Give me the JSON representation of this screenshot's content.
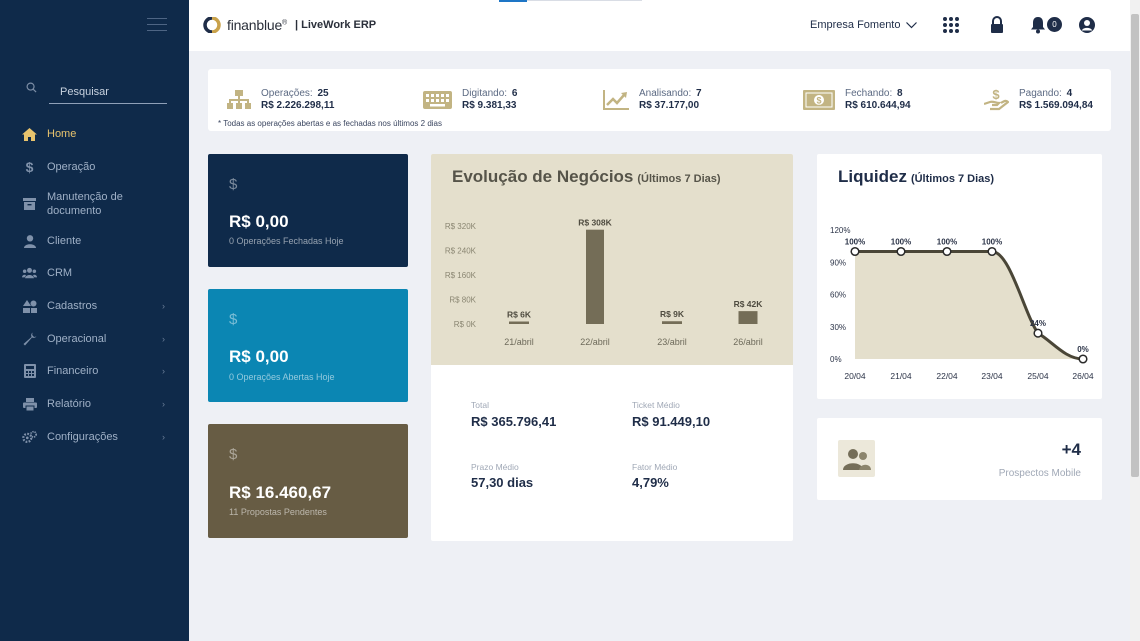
{
  "sidebar": {
    "search_placeholder": "Pesquisar",
    "items": [
      {
        "label": "Home",
        "icon": "home-icon",
        "active": true,
        "submenu": false
      },
      {
        "label": "Operação",
        "icon": "dollar-icon",
        "submenu": false
      },
      {
        "label": "Manutenção de documento",
        "icon": "archive-icon",
        "submenu": false
      },
      {
        "label": "Cliente",
        "icon": "user-icon",
        "submenu": false
      },
      {
        "label": "CRM",
        "icon": "users-icon",
        "submenu": false
      },
      {
        "label": "Cadastros",
        "icon": "shapes-icon",
        "submenu": true
      },
      {
        "label": "Operacional",
        "icon": "wrench-icon",
        "submenu": true
      },
      {
        "label": "Financeiro",
        "icon": "calculator-icon",
        "submenu": true
      },
      {
        "label": "Relatório",
        "icon": "printer-icon",
        "submenu": true
      },
      {
        "label": "Configurações",
        "icon": "gears-icon",
        "submenu": true
      }
    ],
    "caret": "›"
  },
  "topbar": {
    "logo_text": "finanblue",
    "logo_mark": "®",
    "app_name": "| LiveWork ERP",
    "company": "Empresa Fomento",
    "notification_count": "0"
  },
  "summary": {
    "items": [
      {
        "label": "Operações:",
        "count": "25",
        "value": "R$ 2.226.298,11",
        "icon": "org-chart-icon"
      },
      {
        "label": "Digitando:",
        "count": "6",
        "value": "R$ 9.381,33",
        "icon": "keyboard-icon"
      },
      {
        "label": "Analisando:",
        "count": "7",
        "value": "R$ 37.177,00",
        "icon": "trend-chart-icon"
      },
      {
        "label": "Fechando:",
        "count": "8",
        "value": "R$ 610.644,94",
        "icon": "banknote-icon"
      },
      {
        "label": "Pagando:",
        "count": "4",
        "value": "R$ 1.569.094,84",
        "icon": "hand-dollar-icon"
      }
    ],
    "note": "* Todas as operações abertas e as fechadas nos últimos 2 dias"
  },
  "cards": [
    {
      "symbol": "$",
      "amount": "R$ 0,00",
      "sub": "0 Operações Fechadas Hoje",
      "color": "#0f2a4a"
    },
    {
      "symbol": "$",
      "amount": "R$ 0,00",
      "sub": "0 Operações Abertas Hoje",
      "color": "#0b86b3"
    },
    {
      "symbol": "$",
      "amount": "R$ 16.460,67",
      "sub": "11 Propostas Pendentes",
      "color": "#675c44"
    }
  ],
  "evolucao": {
    "title": "Evolução de Negócios",
    "subtitle": "(Últimos 7 Dias)",
    "metrics": {
      "total_label": "Total",
      "total_value": "R$ 365.796,41",
      "ticket_label": "Ticket Médio",
      "ticket_value": "R$ 91.449,10",
      "prazo_label": "Prazo Médio",
      "prazo_value": "57,30 dias",
      "fator_label": "Fator Médio",
      "fator_value": "4,79%"
    }
  },
  "liquidez": {
    "title": "Liquidez",
    "subtitle": "(Últimos 7 Dias)"
  },
  "prospectos": {
    "count": "+4",
    "label": "Prospectos Mobile"
  },
  "chart_data": [
    {
      "type": "bar",
      "title": "Evolução de Negócios",
      "categories": [
        "21/abril",
        "22/abril",
        "23/abril",
        "26/abril"
      ],
      "values": [
        6,
        308,
        9,
        42
      ],
      "data_labels": [
        "R$ 6K",
        "R$ 308K",
        "R$ 9K",
        "R$ 42K"
      ],
      "yticks": [
        0,
        80,
        160,
        240,
        320
      ],
      "ytick_labels": [
        "R$ 0K",
        "R$ 80K",
        "R$ 160K",
        "R$ 240K",
        "R$ 320K"
      ],
      "ylim": [
        0,
        320
      ],
      "bar_color": "#746d57"
    },
    {
      "type": "area",
      "title": "Liquidez",
      "categories": [
        "20/04",
        "21/04",
        "22/04",
        "23/04",
        "25/04",
        "26/04"
      ],
      "values": [
        100,
        100,
        100,
        100,
        24,
        0
      ],
      "data_labels": [
        "100%",
        "100%",
        "100%",
        "100%",
        "24%",
        "0%"
      ],
      "yticks": [
        0,
        30,
        60,
        90,
        120
      ],
      "ytick_labels": [
        "0%",
        "30%",
        "60%",
        "90%",
        "120%"
      ],
      "ylim": [
        0,
        120
      ],
      "fill_color": "#e4dfcc",
      "line_color": "#4a4637"
    }
  ]
}
